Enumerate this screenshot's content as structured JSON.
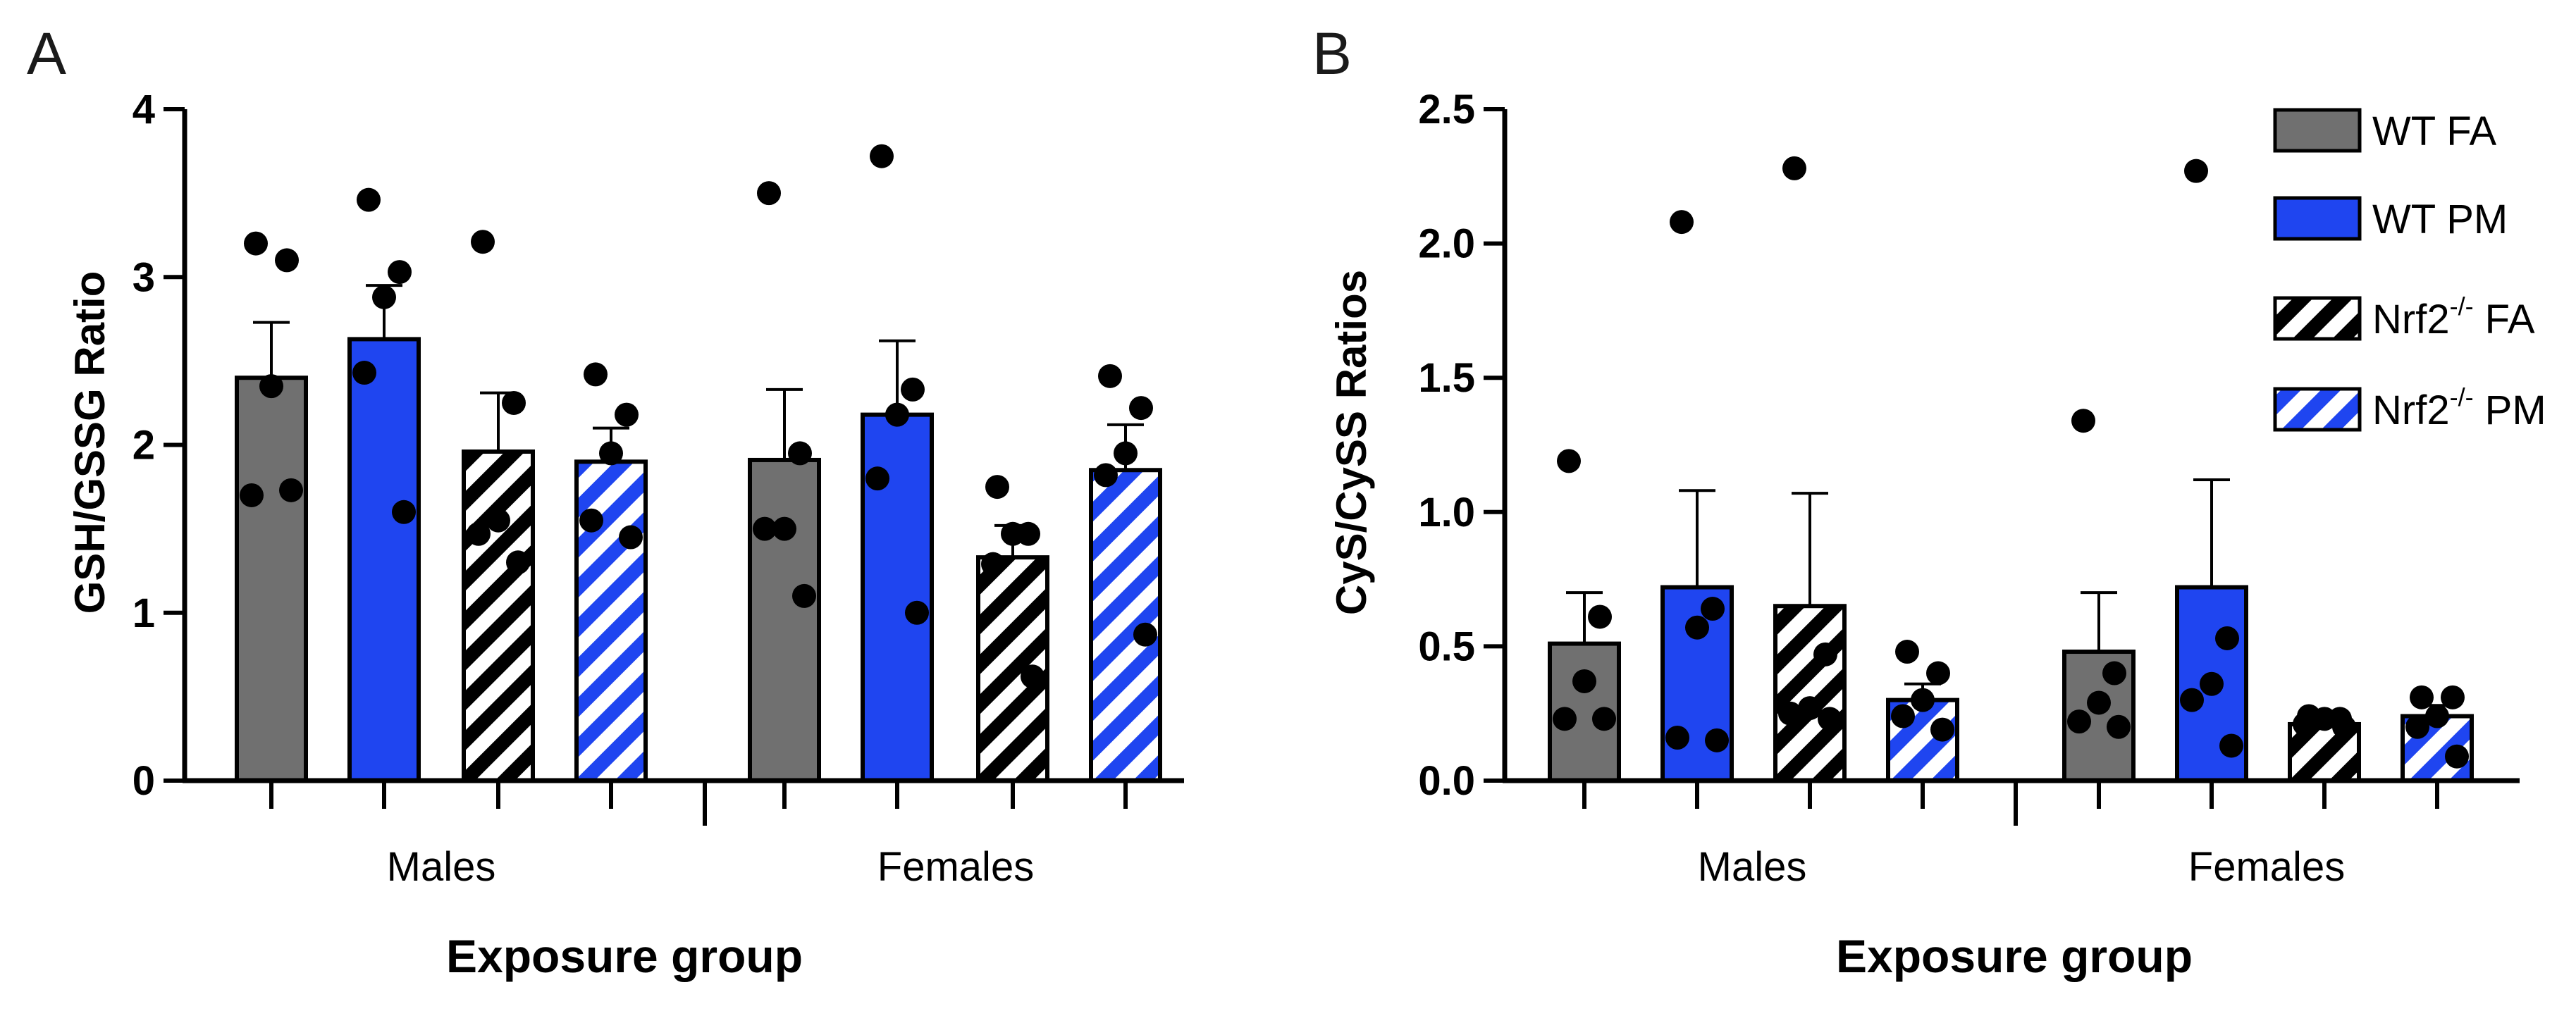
{
  "legend": {
    "items": [
      {
        "key": "wt_fa",
        "name": "WT FA",
        "fill": "gray",
        "color": "#707070",
        "hatched": false
      },
      {
        "key": "wt_pm",
        "name": "WT PM",
        "fill": "blue",
        "color": "#1f45f0",
        "hatched": false
      },
      {
        "key": "nrf2_fa",
        "name_main": "Nrf2",
        "name_sup": "-/-",
        "name_tail": " FA",
        "fill": "black-white",
        "color": "#000000",
        "hatched": true
      },
      {
        "key": "nrf2_pm",
        "name_main": "Nrf2",
        "name_sup": "-/-",
        "name_tail": " PM",
        "fill": "blue-white",
        "color": "#1f45f0",
        "hatched": true
      }
    ]
  },
  "chart_data": [
    {
      "panel": "A",
      "type": "bar",
      "ylabel": "GSH/GSSG Ratio",
      "xlabel": "Exposure group",
      "ylim": [
        0,
        4
      ],
      "yticks": [
        0,
        1,
        2,
        3,
        4
      ],
      "ytick_labels": [
        "0",
        "1",
        "2",
        "3",
        "4"
      ],
      "categories": [
        "Males",
        "Females"
      ],
      "series": [
        {
          "key": "wt_fa",
          "name": "WT FA",
          "values": [
            2.4,
            1.91
          ],
          "error": [
            0.33,
            0.42
          ],
          "points": [
            [
              3.2,
              3.1,
              2.35,
              1.7,
              1.73
            ],
            [
              3.5,
              1.95,
              1.5,
              1.5,
              1.1
            ]
          ]
        },
        {
          "key": "wt_pm",
          "name": "WT PM",
          "values": [
            2.63,
            2.18
          ],
          "error": [
            0.32,
            0.44
          ],
          "points": [
            [
              3.46,
              3.03,
              2.88,
              2.43,
              1.6
            ],
            [
              3.72,
              2.33,
              2.18,
              1.8,
              1.0
            ]
          ]
        },
        {
          "key": "nrf2_fa",
          "name": "Nrf2-/- FA",
          "values": [
            1.96,
            1.33
          ],
          "error": [
            0.35,
            0.19
          ],
          "points": [
            [
              3.21,
              2.25,
              1.55,
              1.47,
              1.3
            ],
            [
              1.75,
              1.47,
              1.47,
              1.29,
              0.62
            ]
          ]
        },
        {
          "key": "nrf2_pm",
          "name": "Nrf2-/- PM",
          "values": [
            1.9,
            1.85
          ],
          "error": [
            0.2,
            0.27
          ],
          "points": [
            [
              2.42,
              2.18,
              1.95,
              1.55,
              1.45
            ],
            [
              2.41,
              2.22,
              1.95,
              1.82,
              0.87
            ]
          ]
        }
      ]
    },
    {
      "panel": "B",
      "type": "bar",
      "ylabel": "CyS/CySS Ratios",
      "xlabel": "Exposure group",
      "ylim": [
        0,
        2.5
      ],
      "yticks": [
        0,
        0.5,
        1,
        1.5,
        2,
        2.5
      ],
      "ytick_labels": [
        "0.0",
        "0.5",
        "1.0",
        "1.5",
        "2.0",
        "2.5"
      ],
      "categories": [
        "Males",
        "Females"
      ],
      "series": [
        {
          "key": "wt_fa",
          "name": "WT FA",
          "values": [
            0.51,
            0.48
          ],
          "error": [
            0.19,
            0.22
          ],
          "points": [
            [
              1.19,
              0.61,
              0.37,
              0.23,
              0.23
            ],
            [
              1.34,
              0.4,
              0.29,
              0.22,
              0.2
            ]
          ]
        },
        {
          "key": "wt_pm",
          "name": "WT PM",
          "values": [
            0.72,
            0.72
          ],
          "error": [
            0.36,
            0.4
          ],
          "points": [
            [
              2.08,
              0.64,
              0.57,
              0.16,
              0.15
            ],
            [
              2.27,
              0.53,
              0.36,
              0.3,
              0.13
            ]
          ]
        },
        {
          "key": "nrf2_fa",
          "name": "Nrf2-/- FA",
          "values": [
            0.65,
            0.21
          ],
          "error": [
            0.42,
            0.03
          ],
          "points": [
            [
              2.28,
              0.47,
              0.27,
              0.25,
              0.23
            ],
            [
              0.24,
              0.23,
              0.23,
              0.21,
              0.2
            ]
          ]
        },
        {
          "key": "nrf2_pm",
          "name": "Nrf2-/- PM",
          "values": [
            0.3,
            0.24
          ],
          "error": [
            0.06,
            0.04
          ],
          "points": [
            [
              0.48,
              0.4,
              0.3,
              0.24,
              0.19
            ],
            [
              0.31,
              0.31,
              0.24,
              0.2,
              0.09
            ]
          ]
        }
      ]
    }
  ]
}
